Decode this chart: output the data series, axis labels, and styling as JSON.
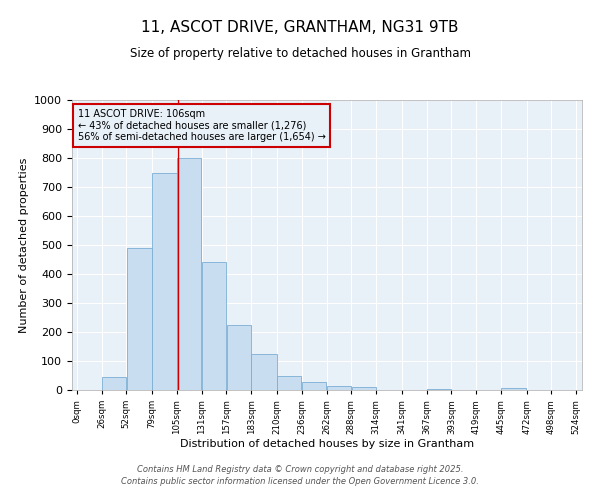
{
  "title1": "11, ASCOT DRIVE, GRANTHAM, NG31 9TB",
  "title2": "Size of property relative to detached houses in Grantham",
  "xlabel": "Distribution of detached houses by size in Grantham",
  "ylabel": "Number of detached properties",
  "bar_edges": [
    0,
    26,
    52,
    79,
    105,
    131,
    157,
    183,
    210,
    236,
    262,
    288,
    314,
    341,
    367,
    393,
    419,
    445,
    472,
    498,
    524
  ],
  "bar_heights": [
    0,
    45,
    490,
    750,
    800,
    440,
    225,
    125,
    50,
    28,
    15,
    10,
    0,
    0,
    5,
    0,
    0,
    8,
    0,
    0
  ],
  "bar_color": "#c9ddf0",
  "bar_edgecolor": "#7bafd4",
  "vline_x": 106,
  "vline_color": "#cc0000",
  "ylim": [
    0,
    1000
  ],
  "xlim_min": -5,
  "xlim_max": 530,
  "annotation_line1": "11 ASCOT DRIVE: 106sqm",
  "annotation_line2": "← 43% of detached houses are smaller (1,276)",
  "annotation_line3": "56% of semi-detached houses are larger (1,654) →",
  "annotation_box_edgecolor": "#cc0000",
  "background_color": "#ffffff",
  "plot_bg_color": "#e8f0f8",
  "grid_color": "#ffffff",
  "footer1": "Contains HM Land Registry data © Crown copyright and database right 2025.",
  "footer2": "Contains public sector information licensed under the Open Government Licence 3.0.",
  "tick_labels": [
    "0sqm",
    "26sqm",
    "52sqm",
    "79sqm",
    "105sqm",
    "131sqm",
    "157sqm",
    "183sqm",
    "210sqm",
    "236sqm",
    "262sqm",
    "288sqm",
    "314sqm",
    "341sqm",
    "367sqm",
    "393sqm",
    "419sqm",
    "445sqm",
    "472sqm",
    "498sqm",
    "524sqm"
  ]
}
